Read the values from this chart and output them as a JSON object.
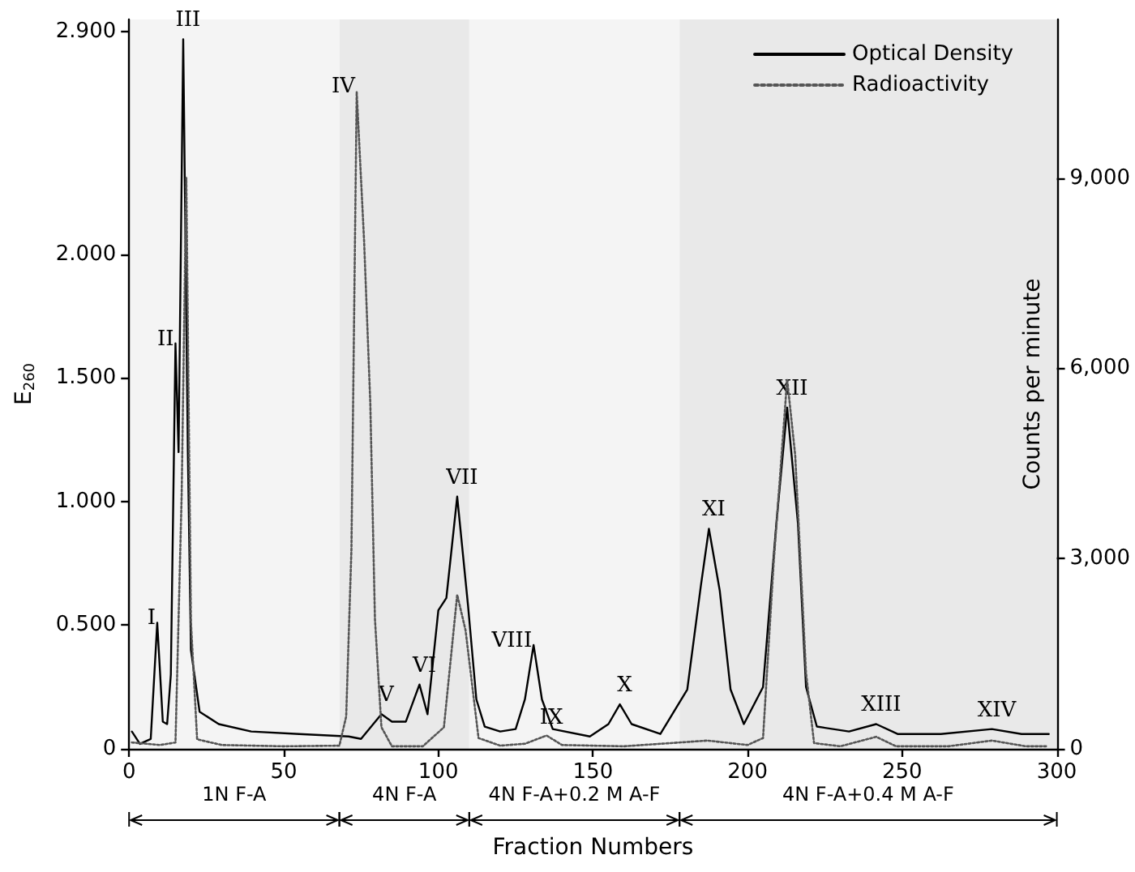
{
  "chart_data": {
    "type": "line",
    "xlabel": "Fraction Numbers",
    "ylabel": "E$_{260}$",
    "y2label": "Counts per minute",
    "xlim": [
      0,
      300
    ],
    "xticks": [
      0,
      50,
      100,
      150,
      200,
      250,
      300
    ],
    "ylim": [
      0,
      2.95
    ],
    "yticks": [
      0,
      {
        "value": 0.5,
        "label": "0.500"
      },
      {
        "value": 1,
        "label": "1.000"
      },
      {
        "value": 1.5,
        "label": "1.500"
      },
      {
        "value": 2,
        "label": "2.000"
      },
      {
        "value": 2.9,
        "label": "2.900"
      }
    ],
    "y2lim": [
      0,
      11500
    ],
    "y2ticks": [
      0,
      {
        "value": 3000,
        "label": "3,000"
      },
      {
        "value": 6000,
        "label": "6,000"
      },
      {
        "value": 9000,
        "label": "9,000"
      }
    ],
    "legend": "top right",
    "marker": "none",
    "series": [
      {
        "name": "Optical Density",
        "color": "#000000",
        "line_style": "solid",
        "x": [
          0.9,
          3.5,
          7,
          9.1,
          10.9,
          12.3,
          13.5,
          15,
          16,
          17.5,
          19,
          20,
          22.8,
          29,
          39.5,
          55,
          71,
          75,
          81.6,
          85,
          89.5,
          93.9,
          96.5,
          100,
          102.6,
          106.1,
          109.6,
          112.3,
          115,
          120,
          125,
          128,
          130.8,
          133.5,
          137,
          149,
          155,
          158.7,
          162.5,
          171.8,
          180.5,
          184.9,
          187.5,
          191,
          194.5,
          198.8,
          205,
          209.3,
          212.8,
          216.3,
          218.9,
          222.4,
          232.8,
          241.6,
          248.5,
          262.5,
          279,
          288.6,
          297.4
        ],
        "values": [
          0.07,
          0.02,
          0.04,
          0.51,
          0.11,
          0.1,
          0.3,
          1.64,
          1.2,
          2.87,
          1.2,
          0.4,
          0.15,
          0.1,
          0.07,
          0.06,
          0.05,
          0.04,
          0.14,
          0.11,
          0.11,
          0.26,
          0.14,
          0.56,
          0.61,
          1.02,
          0.58,
          0.2,
          0.09,
          0.07,
          0.08,
          0.2,
          0.42,
          0.2,
          0.08,
          0.05,
          0.1,
          0.18,
          0.1,
          0.06,
          0.24,
          0.66,
          0.89,
          0.64,
          0.24,
          0.1,
          0.25,
          0.91,
          1.38,
          0.91,
          0.25,
          0.09,
          0.07,
          0.1,
          0.06,
          0.06,
          0.08,
          0.06,
          0.06
        ]
      },
      {
        "name": "Radioactivity",
        "color": "#555555",
        "line_style": "dotted",
        "axis": "y2",
        "x": [
          0.9,
          10,
          15,
          17,
          18.5,
          20,
          22,
          30,
          50,
          68,
          70.2,
          71.9,
          73.6,
          76,
          78,
          79.5,
          81.6,
          85,
          95,
          101.8,
          106.1,
          108.8,
          113,
          120,
          128,
          135,
          140,
          160,
          187,
          200,
          205,
          208.4,
          212.8,
          215.4,
          218.9,
          221.5,
          230,
          241.6,
          248,
          265,
          279,
          290,
          297
        ],
        "values": [
          100,
          60,
          100,
          4000,
          9000,
          2000,
          150,
          60,
          40,
          50,
          510,
          3150,
          10360,
          8000,
          5450,
          2050,
          340,
          40,
          40,
          340,
          2430,
          1870,
          170,
          50,
          80,
          210,
          60,
          40,
          130,
          60,
          170,
          2910,
          5830,
          4630,
          1200,
          90,
          40,
          190,
          40,
          40,
          130,
          40,
          40
        ]
      }
    ],
    "bands": [
      {
        "axis": "x",
        "from": 0,
        "to": 68,
        "label": "1N F-A",
        "color": "#f4f4f4"
      },
      {
        "axis": "x",
        "from": 68,
        "to": 110,
        "label": "4N F-A",
        "color": "#e9e9e9"
      },
      {
        "axis": "x",
        "from": 110,
        "to": 178,
        "label": "4N F-A+0.2 M A-F",
        "color": "#f4f4f4"
      },
      {
        "axis": "x",
        "from": 178,
        "to": 300,
        "label": "4N F-A+0.4 M A-F",
        "color": "#e9e9e9"
      }
    ],
    "annotations": [
      {
        "text": "I",
        "x": 9.1,
        "y": 0.51
      },
      {
        "text": "II",
        "x": 15,
        "y": 1.64
      },
      {
        "text": "III",
        "x": 17.5,
        "y": 2.87
      },
      {
        "text": "IV",
        "x": 73.6,
        "y": 2.66
      },
      {
        "text": "V",
        "x": 81.6,
        "y": 0.14
      },
      {
        "text": "VI",
        "x": 93.9,
        "y": 0.26
      },
      {
        "text": "VII",
        "x": 106.1,
        "y": 1.02
      },
      {
        "text": "VIII",
        "x": 130.8,
        "y": 0.42
      },
      {
        "text": "IX",
        "x": 135,
        "y": 0.05
      },
      {
        "text": "X",
        "x": 158.7,
        "y": 0.18
      },
      {
        "text": "XI",
        "x": 187.5,
        "y": 0.89
      },
      {
        "text": "XII",
        "x": 212.8,
        "y": 1.38
      },
      {
        "text": "XIII",
        "x": 241.6,
        "y": 0.1
      },
      {
        "text": "XIV",
        "x": 279,
        "y": 0.08
      }
    ]
  }
}
